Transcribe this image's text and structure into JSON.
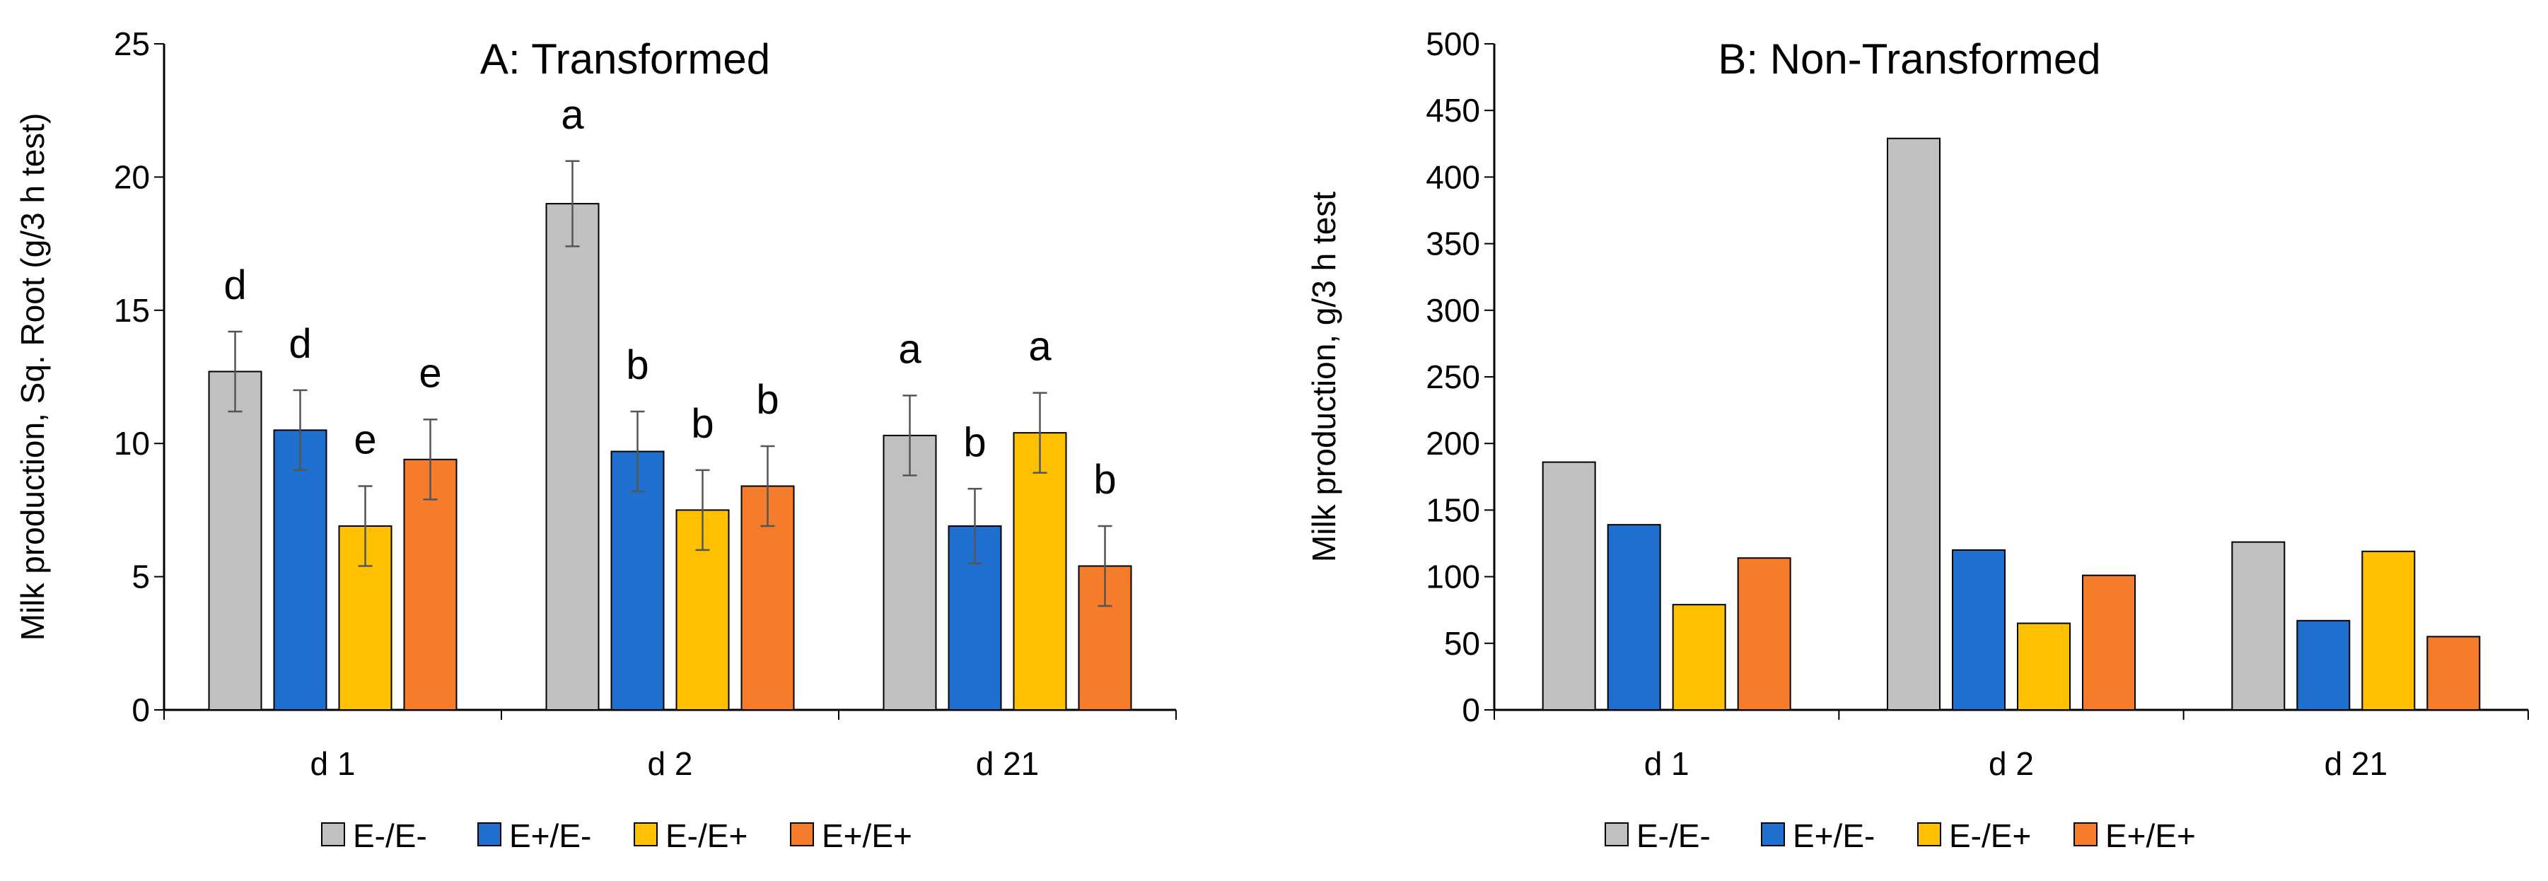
{
  "chart_data": [
    {
      "type": "bar",
      "title": "A: Transformed",
      "xlabel": "",
      "ylabel": "Milk production, Sq. Root (g/3 h test)",
      "ylim": [
        0,
        25
      ],
      "yticks": [
        "0",
        "5",
        "10",
        "15",
        "20",
        "25"
      ],
      "categories": [
        "d 1",
        "d 2",
        "d 21"
      ],
      "series": [
        {
          "name": "E-/E-",
          "color": "#c0c0c0",
          "values": [
            12.7,
            19.0,
            10.3
          ],
          "errors": [
            1.5,
            1.6,
            1.5
          ],
          "labels": [
            "d",
            "a",
            "a"
          ]
        },
        {
          "name": "E+/E-",
          "color": "#1f6fcf",
          "values": [
            10.5,
            9.7,
            6.9
          ],
          "errors": [
            1.5,
            1.5,
            1.4
          ],
          "labels": [
            "d",
            "b",
            "b"
          ]
        },
        {
          "name": "E-/E+",
          "color": "#ffc000",
          "values": [
            6.9,
            7.5,
            10.4
          ],
          "errors": [
            1.5,
            1.5,
            1.5
          ],
          "labels": [
            "e",
            "b",
            "a"
          ]
        },
        {
          "name": "E+/E+",
          "color": "#f47c2a",
          "values": [
            9.4,
            8.4,
            5.4
          ],
          "errors": [
            1.5,
            1.5,
            1.5
          ],
          "labels": [
            "e",
            "b",
            "b"
          ]
        }
      ],
      "legend": "bottom"
    },
    {
      "type": "bar",
      "title": "B: Non-Transformed",
      "xlabel": "",
      "ylabel": "Milk production, g/3 h test",
      "ylim": [
        0,
        500
      ],
      "yticks": [
        "0",
        "50",
        "100",
        "150",
        "200",
        "250",
        "300",
        "350",
        "400",
        "450",
        "500"
      ],
      "categories": [
        "d 1",
        "d 2",
        "d 21"
      ],
      "series": [
        {
          "name": "E-/E-",
          "color": "#c0c0c0",
          "values": [
            186,
            429,
            126
          ]
        },
        {
          "name": "E+/E-",
          "color": "#1f6fcf",
          "values": [
            139,
            120,
            67
          ]
        },
        {
          "name": "E-/E+",
          "color": "#ffc000",
          "values": [
            79,
            65,
            119
          ]
        },
        {
          "name": "E+/E+",
          "color": "#f47c2a",
          "values": [
            114,
            101,
            55
          ]
        }
      ],
      "legend": "bottom"
    }
  ]
}
